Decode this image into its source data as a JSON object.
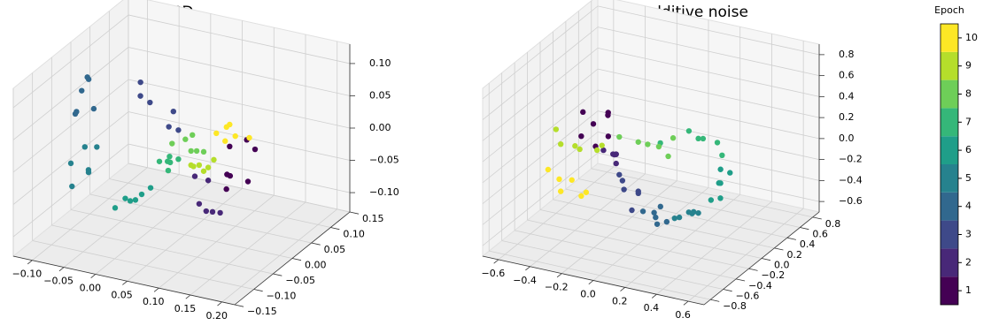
{
  "chart_data": [
    {
      "type": "scatter3d",
      "title": "SGD",
      "xlim": [
        -0.13,
        0.22
      ],
      "ylim": [
        -0.15,
        0.15
      ],
      "zlim": [
        -0.13,
        0.13
      ],
      "xticks": [
        {
          "value": -0.1,
          "label": "−0.10"
        },
        {
          "value": -0.05,
          "label": "−0.05"
        },
        {
          "value": 0,
          "label": "0.00"
        },
        0.05,
        {
          "value": 0.1,
          "label": "0.10"
        },
        0.15,
        {
          "value": 0.2,
          "label": "0.20"
        }
      ],
      "yticks": [
        {
          "value": -0.15,
          "label": "−0.15"
        },
        {
          "value": -0.1,
          "label": "−0.10"
        },
        {
          "value": -0.05,
          "label": "−0.05"
        },
        {
          "value": 0,
          "label": "0.00"
        },
        0.05,
        {
          "value": 0.1,
          "label": "0.10"
        },
        0.15
      ],
      "zticks": [
        {
          "value": -0.1,
          "label": "−0.10"
        },
        {
          "value": -0.05,
          "label": "−0.05"
        },
        {
          "value": 0,
          "label": "0.00"
        },
        0.05,
        {
          "value": 0.1,
          "label": "0.10"
        }
      ],
      "series": [
        {
          "x": [
            0.115,
            0.129,
            0.143,
            0.15,
            0.122,
            0.136,
            0.14
          ],
          "y": [
            0.01,
            -0.02,
            0.03,
            0,
            -0.01,
            0.02,
            -0.03
          ],
          "z": [
            0.016,
            -0.01,
            0.008,
            -0.026,
            -0.039,
            0.026,
            -0.005
          ]
        },
        {
          "x": [
            0.094,
            0.1,
            0.09,
            0.066,
            0.075,
            0.085
          ],
          "y": [
            0,
            0.01,
            -0.01,
            0,
            0.02,
            -0.02
          ],
          "z": [
            -0.085,
            -0.09,
            -0.08,
            -0.036,
            -0.05,
            -0.065
          ]
        },
        {
          "x": [
            -0.032,
            -0.02,
            -0.011,
            0.031,
            0.04,
            0.02
          ],
          "y": [
            0.02,
            0,
            0.01,
            -0.01,
            0,
            0.02
          ],
          "z": [
            0.079,
            0.07,
            0.057,
            0.038,
            0.03,
            0.045
          ]
        },
        {
          "x": [
            -0.125,
            -0.12,
            -0.123,
            -0.115,
            -0.11,
            -0.118
          ],
          "y": [
            0.02,
            0.03,
            0,
            -0.01,
            0.01,
            0.04
          ],
          "z": [
            0.046,
            0.06,
            0.02,
            0.03,
            0.075,
            0.01
          ]
        },
        {
          "x": [
            -0.13,
            -0.12,
            -0.102,
            -0.09,
            -0.11,
            -0.095
          ],
          "y": [
            0,
            0.02,
            0,
            -0.02,
            -0.03,
            0.01
          ],
          "z": [
            -0.058,
            -0.04,
            -0.066,
            -0.05,
            -0.075,
            -0.03
          ]
        },
        {
          "x": [
            -0.06,
            -0.05,
            -0.018,
            -0.03,
            -0.04,
            -0.01
          ],
          "y": [
            0,
            0.01,
            0,
            -0.01,
            0.02,
            0.01
          ],
          "z": [
            -0.112,
            -0.1,
            -0.082,
            -0.09,
            -0.105,
            -0.075
          ]
        },
        {
          "x": [
            0.01,
            0.02,
            0.03,
            0.04,
            0.015,
            0.035
          ],
          "y": [
            0,
            0.01,
            -0.01,
            0,
            0.02,
            -0.02
          ],
          "z": [
            -0.025,
            -0.02,
            -0.03,
            -0.015,
            -0.035,
            -0.01
          ]
        },
        {
          "x": [
            0.03,
            0.045,
            0.06,
            0.075,
            0.05,
            0.08
          ],
          "y": [
            0,
            0.01,
            0,
            -0.01,
            0.02,
            0
          ],
          "z": [
            0.007,
            0.012,
            0.002,
            0.01,
            0.015,
            0.005
          ]
        },
        {
          "x": [
            0.06,
            0.07,
            0.08,
            0.09,
            0.075,
            0.085
          ],
          "y": [
            0,
            -0.01,
            0,
            0.01,
            0.02,
            -0.02
          ],
          "z": [
            -0.02,
            -0.015,
            -0.025,
            -0.01,
            -0.03,
            -0.005
          ]
        },
        {
          "x": [
            0.1,
            0.11,
            0.12,
            0.13,
            0.14,
            0.115
          ],
          "y": [
            0,
            0.01,
            -0.01,
            0,
            0.02,
            0.01
          ],
          "z": [
            0.038,
            0.045,
            0.035,
            0.04,
            0.03,
            0.05
          ]
        }
      ]
    },
    {
      "type": "scatter3d",
      "title": "GD w/ additive noise",
      "xlim": [
        -0.7,
        0.7
      ],
      "ylim": [
        -0.9,
        0.9
      ],
      "zlim": [
        -0.7,
        0.9
      ],
      "xticks": [
        {
          "value": -0.6,
          "label": "−0.6"
        },
        {
          "value": -0.4,
          "label": "−0.4"
        },
        {
          "value": -0.2,
          "label": "−0.2"
        },
        {
          "value": 0,
          "label": "0.0"
        },
        0.2,
        0.4,
        0.6
      ],
      "yticks": [
        {
          "value": -0.8,
          "label": "−0.8"
        },
        {
          "value": -0.6,
          "label": "−0.6"
        },
        {
          "value": -0.4,
          "label": "−0.4"
        },
        {
          "value": -0.2,
          "label": "−0.2"
        },
        {
          "value": 0,
          "label": "0.0"
        },
        0.2,
        0.4,
        0.6,
        0.8
      ],
      "zticks": [
        {
          "value": -0.6,
          "label": "−0.6"
        },
        {
          "value": -0.4,
          "label": "−0.4"
        },
        {
          "value": -0.2,
          "label": "−0.2"
        },
        {
          "value": 0,
          "label": "0.0"
        },
        0.2,
        0.4,
        0.6,
        0.8
      ],
      "series": [
        {
          "x": [
            -0.45,
            -0.364,
            -0.25,
            -0.31,
            -0.4,
            -0.28,
            -0.35
          ],
          "y": [
            0.05,
            0,
            -0.05,
            0.1,
            -0.1,
            0.02,
            0
          ],
          "z": [
            0.29,
            0.23,
            0.4,
            0.08,
            0.15,
            0.33,
            0.02
          ]
        },
        {
          "x": [
            -0.3,
            -0.25,
            -0.2,
            -0.28,
            -0.22,
            -0.18
          ],
          "y": [
            0,
            0.05,
            -0.05,
            0.1,
            0,
            -0.1
          ],
          "z": [
            0,
            -0.05,
            0.02,
            -0.08,
            -0.1,
            0.05
          ]
        },
        {
          "x": [
            -0.2,
            -0.15,
            -0.1,
            -0.18,
            -0.12,
            -0.08
          ],
          "y": [
            0,
            -0.05,
            0.05,
            0,
            0.1,
            -0.1
          ],
          "z": [
            -0.2,
            -0.3,
            -0.35,
            -0.25,
            -0.4,
            -0.45
          ]
        },
        {
          "x": [
            -0.05,
            0,
            0.05,
            0.1,
            0.02,
            0.08
          ],
          "y": [
            0,
            0.05,
            -0.05,
            0,
            0.1,
            -0.1
          ],
          "z": [
            -0.5,
            -0.52,
            -0.5,
            -0.55,
            -0.48,
            -0.53
          ]
        },
        {
          "x": [
            0.15,
            0.2,
            0.25,
            0.3,
            0.22,
            0.28
          ],
          "y": [
            0,
            -0.05,
            0.05,
            0,
            0.1,
            -0.1
          ],
          "z": [
            -0.5,
            -0.45,
            -0.43,
            -0.4,
            -0.48,
            -0.35
          ]
        },
        {
          "x": [
            0.38,
            0.42,
            0.45,
            0.5,
            0.4,
            0.48
          ],
          "y": [
            0,
            0.05,
            -0.05,
            0,
            0.1,
            -0.1
          ],
          "z": [
            -0.25,
            -0.1,
            -0.04,
            0.05,
            0,
            -0.15
          ]
        },
        {
          "x": [
            0.3,
            0.35,
            0.4,
            0.45,
            0.2,
            0.1
          ],
          "y": [
            0,
            -0.05,
            0.05,
            0,
            0.1,
            -0.1
          ],
          "z": [
            0.31,
            0.35,
            0.28,
            0.2,
            0.3,
            0.25
          ]
        },
        {
          "x": [
            -0.2,
            -0.1,
            0,
            0.05,
            0.1,
            0.15
          ],
          "y": [
            0,
            0.05,
            -0.05,
            0,
            0.1,
            -0.1
          ],
          "z": [
            0.16,
            0.12,
            0.18,
            0.15,
            0.2,
            0.14
          ]
        },
        {
          "x": [
            -0.6,
            -0.55,
            -0.5,
            -0.45,
            -0.35,
            -0.3
          ],
          "y": [
            0,
            -0.05,
            0.05,
            0,
            0.1,
            -0.1
          ],
          "z": [
            0.1,
            0,
            -0.05,
            -0.04,
            -0.02,
            0.05
          ]
        },
        {
          "x": [
            -0.65,
            -0.6,
            -0.55,
            -0.5,
            -0.45,
            -0.4
          ],
          "y": [
            0,
            0.05,
            -0.05,
            0,
            0.1,
            -0.1
          ],
          "z": [
            -0.3,
            -0.4,
            -0.45,
            -0.35,
            -0.5,
            -0.42
          ]
        }
      ]
    }
  ],
  "colorbar": {
    "title": "Epoch",
    "lim": [
      0.5,
      10.5
    ],
    "ticks": [
      1,
      2,
      3,
      4,
      5,
      6,
      7,
      8,
      9,
      10
    ],
    "colors": [
      "#440154",
      "#482878",
      "#3e4989",
      "#31688e",
      "#26828e",
      "#1f9e89",
      "#35b779",
      "#6ece58",
      "#b5de2b",
      "#fde725"
    ]
  }
}
